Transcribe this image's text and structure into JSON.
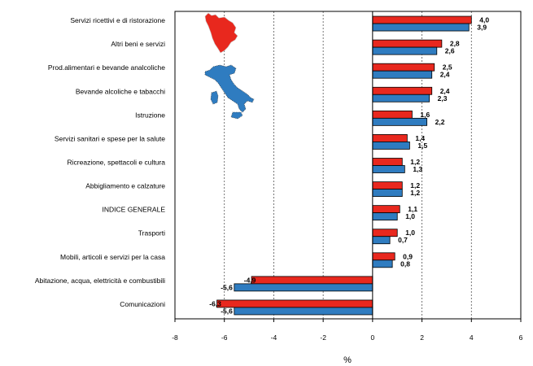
{
  "chart_data": {
    "type": "bar",
    "orientation": "horizontal",
    "xlabel": "%",
    "xlim": [
      -8,
      6
    ],
    "xticks": [
      -8,
      -6,
      -4,
      -2,
      0,
      2,
      4,
      6
    ],
    "tick_labels": [
      "-8",
      "-6",
      "-4",
      "-2",
      "0",
      "2",
      "4",
      "6"
    ],
    "grid": "vertical dashed",
    "categories": [
      "Servizi ricettivi e di ristorazione",
      "Altri beni e servizi",
      "Prod.alimentari e bevande analcoliche",
      "Bevande alcoliche e tabacchi",
      "Istruzione",
      "Servizi sanitari e spese per la salute",
      "Ricreazione, spettacoli e cultura",
      "Abbigliamento e calzature",
      "INDICE GENERALE",
      "Trasporti",
      "Mobili, articoli e servizi per la casa",
      "Abitazione, acqua, elettricità e combustibili",
      "Comunicazioni"
    ],
    "series": [
      {
        "color": "#e8281e",
        "values": [
          4.0,
          2.8,
          2.5,
          2.4,
          1.6,
          1.4,
          1.2,
          1.2,
          1.1,
          1.0,
          0.9,
          -4.9,
          -6.3
        ],
        "labels": [
          "4,0",
          "2,8",
          "2,5",
          "2,4",
          "1,6",
          "1,4",
          "1,2",
          "1,2",
          "1,1",
          "1,0",
          "0,9",
          "-4,9",
          "-6,3"
        ]
      },
      {
        "color": "#2f7cc0",
        "values": [
          3.9,
          2.6,
          2.4,
          2.3,
          2.2,
          1.5,
          1.3,
          1.2,
          1.0,
          0.7,
          0.8,
          -5.6,
          -5.6
        ],
        "labels": [
          "3,9",
          "2,6",
          "2,4",
          "2,3",
          "2,2",
          "1,5",
          "1,3",
          "1,2",
          "1,0",
          "0,7",
          "0,8",
          "-5,6",
          "-5,6"
        ]
      }
    ],
    "legend_icons": [
      {
        "name": "tuscany-map-icon",
        "color": "#e8281e"
      },
      {
        "name": "italy-map-icon",
        "color": "#2f7cc0"
      }
    ]
  }
}
